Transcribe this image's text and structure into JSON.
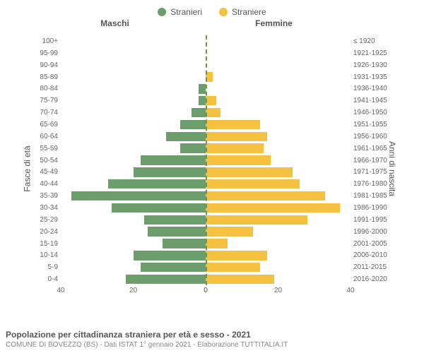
{
  "legend": {
    "male": {
      "label": "Stranieri",
      "color": "#6b9e6b"
    },
    "female": {
      "label": "Straniere",
      "color": "#f5c141"
    }
  },
  "header": {
    "male": "Maschi",
    "female": "Femmine"
  },
  "axis": {
    "left_label": "Fasce di età",
    "right_label": "Anni di nascita",
    "max": 40,
    "ticks_left": [
      40,
      20,
      0
    ],
    "ticks_right": [
      0,
      20,
      40
    ]
  },
  "colors": {
    "male_bar": "#6b9e6b",
    "female_bar": "#f5c141",
    "centerline": "#8a8a3a",
    "text": "#555555",
    "subtext": "#888888",
    "background": "#ffffff"
  },
  "rows": [
    {
      "age": "100+",
      "year": "≤ 1920",
      "m": 0,
      "f": 0
    },
    {
      "age": "95-99",
      "year": "1921-1925",
      "m": 0,
      "f": 0
    },
    {
      "age": "90-94",
      "year": "1926-1930",
      "m": 0,
      "f": 0
    },
    {
      "age": "85-89",
      "year": "1931-1935",
      "m": 0,
      "f": 2
    },
    {
      "age": "80-84",
      "year": "1936-1940",
      "m": 2,
      "f": 0
    },
    {
      "age": "75-79",
      "year": "1941-1945",
      "m": 2,
      "f": 3
    },
    {
      "age": "70-74",
      "year": "1946-1950",
      "m": 4,
      "f": 4
    },
    {
      "age": "65-69",
      "year": "1951-1955",
      "m": 7,
      "f": 15
    },
    {
      "age": "60-64",
      "year": "1956-1960",
      "m": 11,
      "f": 17
    },
    {
      "age": "55-59",
      "year": "1961-1965",
      "m": 7,
      "f": 16
    },
    {
      "age": "50-54",
      "year": "1966-1970",
      "m": 18,
      "f": 18
    },
    {
      "age": "45-49",
      "year": "1971-1975",
      "m": 20,
      "f": 24
    },
    {
      "age": "40-44",
      "year": "1976-1980",
      "m": 27,
      "f": 26
    },
    {
      "age": "35-39",
      "year": "1981-1985",
      "m": 37,
      "f": 33
    },
    {
      "age": "30-34",
      "year": "1986-1990",
      "m": 26,
      "f": 37
    },
    {
      "age": "25-29",
      "year": "1991-1995",
      "m": 17,
      "f": 28
    },
    {
      "age": "20-24",
      "year": "1996-2000",
      "m": 16,
      "f": 13
    },
    {
      "age": "15-19",
      "year": "2001-2005",
      "m": 12,
      "f": 6
    },
    {
      "age": "10-14",
      "year": "2006-2010",
      "m": 20,
      "f": 17
    },
    {
      "age": "5-9",
      "year": "2011-2015",
      "m": 18,
      "f": 15
    },
    {
      "age": "0-4",
      "year": "2016-2020",
      "m": 22,
      "f": 19
    }
  ],
  "footer": {
    "title": "Popolazione per cittadinanza straniera per età e sesso - 2021",
    "subtitle": "COMUNE DI BOVEZZO (BS) - Dati ISTAT 1° gennaio 2021 - Elaborazione TUTTITALIA.IT"
  }
}
